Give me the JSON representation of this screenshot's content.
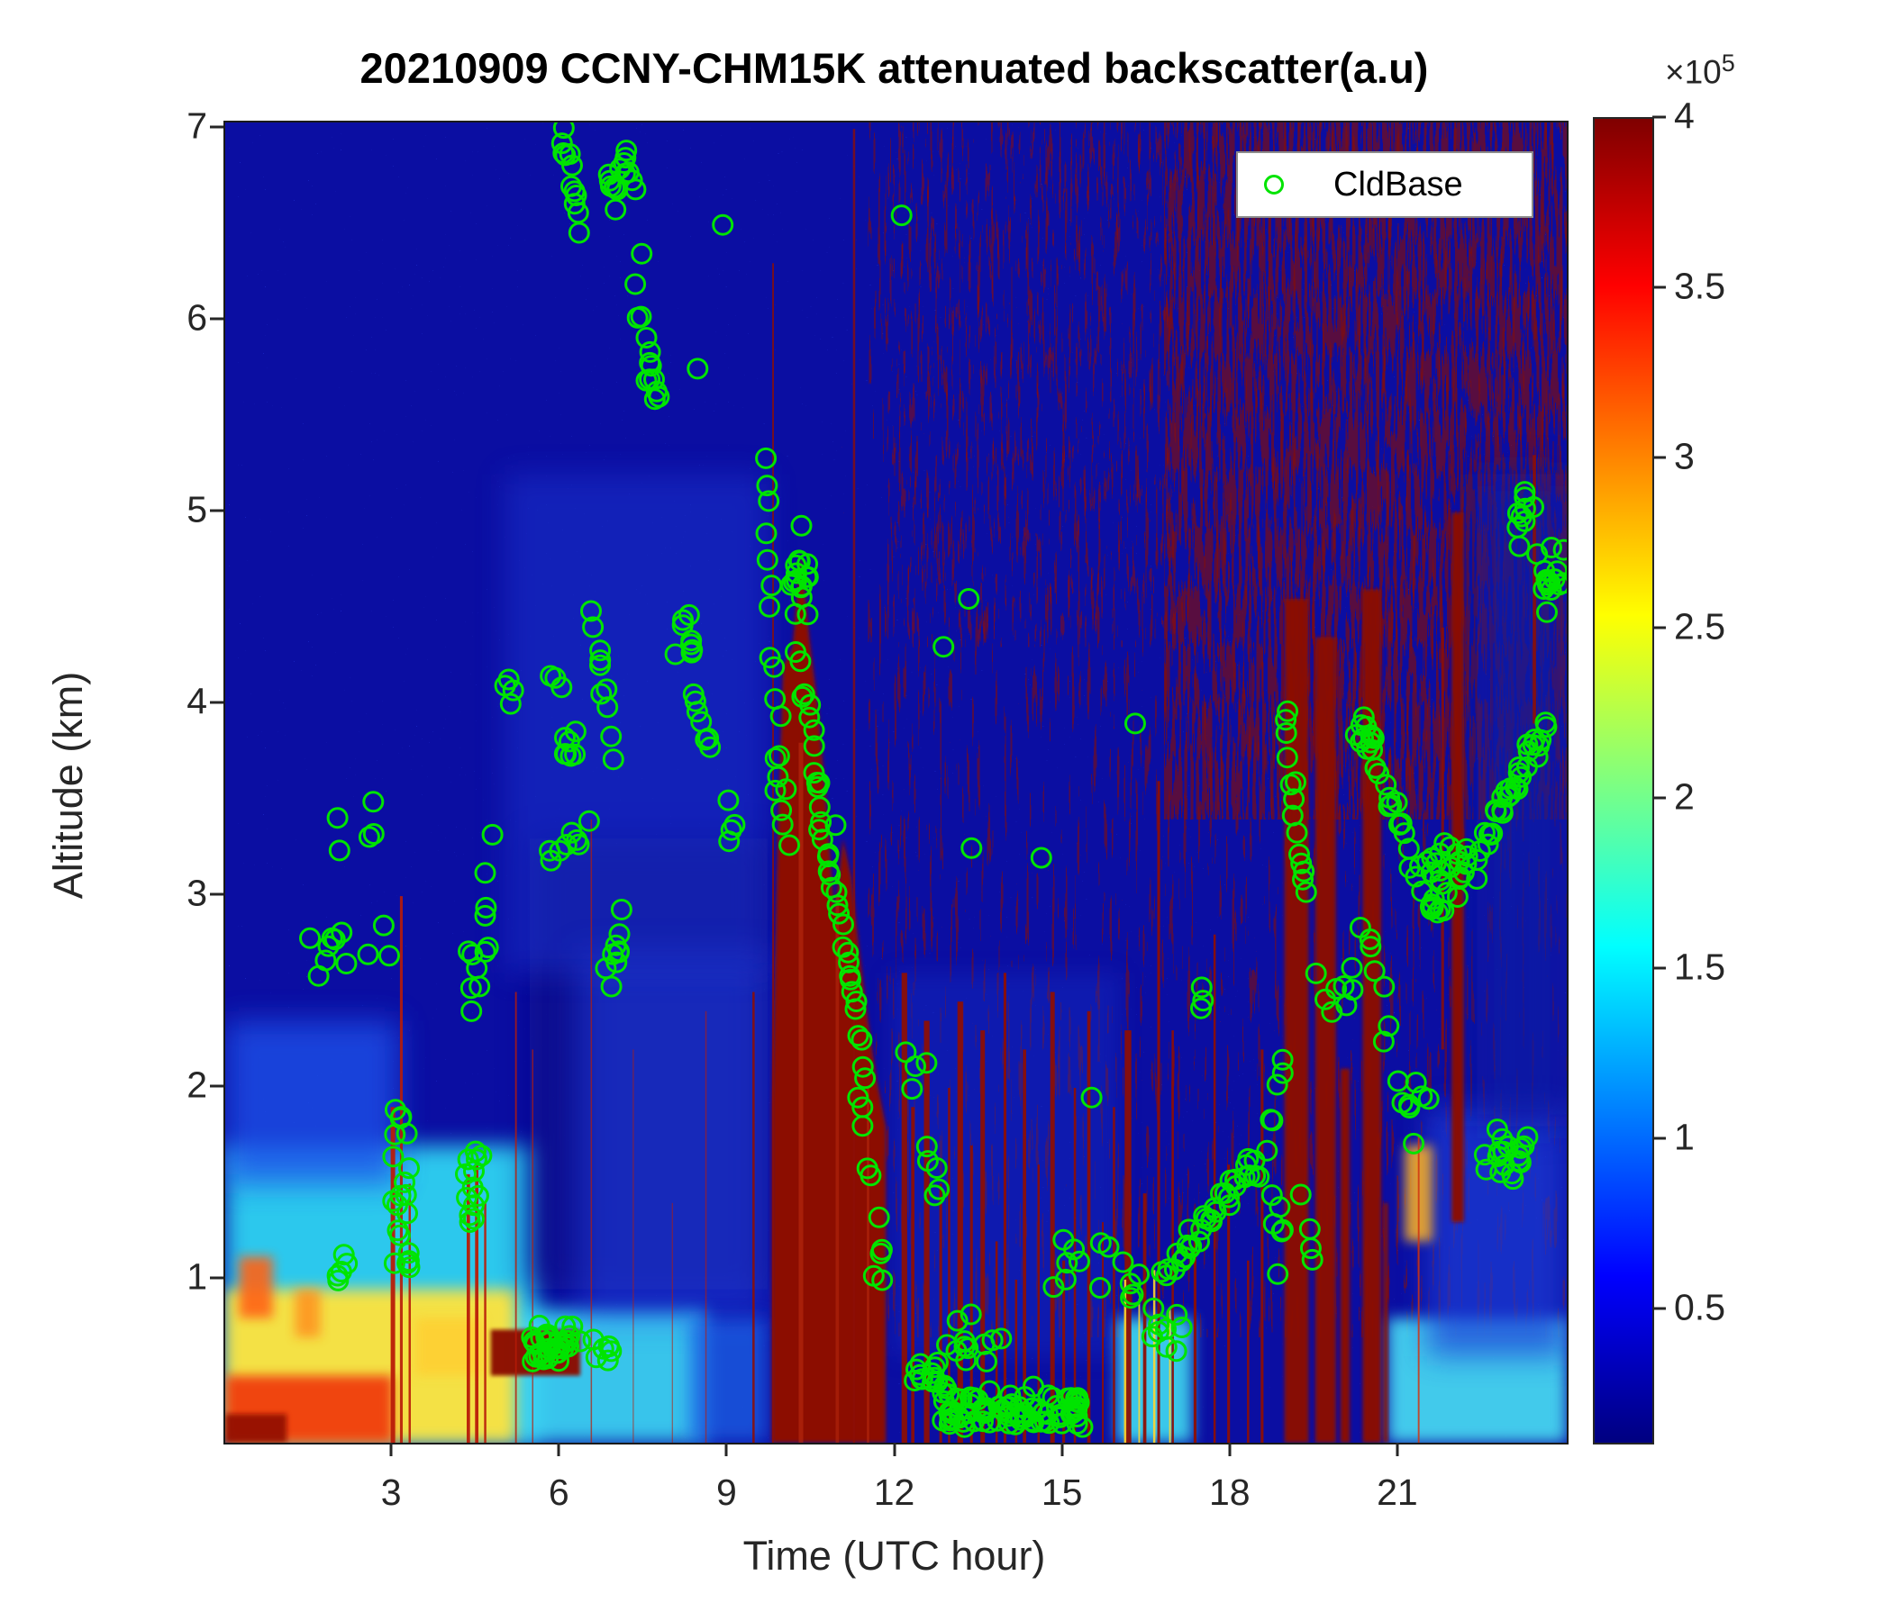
{
  "chart_data": {
    "type": "heatmap",
    "title": "20210909 CCNY-CHM15K attenuated backscatter(a.u)",
    "xlabel": "Time (UTC hour)",
    "ylabel": "Altitude (km)",
    "x_ticks": [
      3,
      6,
      9,
      12,
      15,
      18,
      21
    ],
    "y_ticks": [
      1,
      2,
      3,
      4,
      5,
      6,
      7
    ],
    "x_range": [
      0,
      24
    ],
    "y_range": [
      0.15,
      7.034
    ],
    "grid": false,
    "background_value_color": "#0b0ea2",
    "legend": {
      "label": "CldBase",
      "marker_color": "#00e400",
      "position": "top-right"
    },
    "colorbar": {
      "exp_base": "×10",
      "exp_sup": "5",
      "ticks": [
        4,
        3.5,
        3,
        2.5,
        2,
        1.5,
        1,
        0.5
      ],
      "vmax": 4,
      "vmin": 0.11,
      "colormap": "jet",
      "stops": [
        [
          0,
          "#7f0000"
        ],
        [
          0.126,
          "#ff0000"
        ],
        [
          0.375,
          "#ffff00"
        ],
        [
          0.625,
          "#00ffff"
        ],
        [
          0.874,
          "#0000ff"
        ],
        [
          1,
          "#000080"
        ]
      ]
    },
    "noise_layers_pre": [
      {
        "bf": "0.5 0.5",
        "oct": 1,
        "seed": 11,
        "table": "0 0 0 0 0 0 0 1",
        "color": "#17e7ff",
        "op": 0.6,
        "region": [
          0,
          24,
          0.15,
          7.034
        ]
      },
      {
        "bf": "0.55 0.5",
        "oct": 1,
        "seed": 23,
        "table": "0 0 0 0 0 0 0 0 1",
        "color": "#ffc83c",
        "op": 0.5,
        "region": [
          0,
          24,
          0.15,
          7.034
        ]
      },
      {
        "bf": "0.5 0.45",
        "oct": 1,
        "seed": 31,
        "table": "0 0 0 0 0 0 0 0 1",
        "color": "#d62b10",
        "op": 0.25,
        "region": [
          0,
          11.6,
          0.15,
          7.034
        ]
      },
      {
        "bf": "0.5 0.5",
        "oct": 1,
        "seed": 51,
        "table": "0 0 0 0 1",
        "color": "#3050ff",
        "op": 0.3,
        "region": [
          0,
          24,
          0.15,
          7.034
        ]
      }
    ],
    "fields_a": [
      [
        0,
        5.6,
        0.15,
        1.7,
        "#2fd2f2",
        0.95,
        12
      ],
      [
        5.2,
        8.6,
        0.15,
        0.85,
        "#3cd8f4",
        0.9,
        10
      ],
      [
        0,
        3.1,
        1.5,
        2.35,
        "#1e50e8",
        0.8,
        16
      ],
      [
        0,
        5.2,
        0.15,
        0.95,
        "#ffe33c",
        0.95,
        8
      ],
      [
        0,
        3.0,
        0.15,
        0.5,
        "#f03c0a",
        0.95,
        6
      ],
      [
        0,
        1.1,
        0.15,
        0.3,
        "#900d04",
        0.9,
        3
      ],
      [
        0.25,
        0.85,
        0.8,
        1.12,
        "#ff6414",
        0.9,
        6
      ],
      [
        1.25,
        1.7,
        0.7,
        0.95,
        "#ff8c1e",
        0.8,
        6
      ],
      [
        3.4,
        4.6,
        0.5,
        0.8,
        "#ffcf30",
        0.85,
        6
      ],
      [
        5.45,
        9.7,
        0.95,
        3.3,
        "#0a0f8c",
        0.9,
        18
      ],
      [
        6.3,
        9.7,
        0.8,
        2.7,
        "#2244e6",
        0.5,
        18
      ],
      [
        5.0,
        9.7,
        2.6,
        5.2,
        "#1b38d4",
        0.45,
        16
      ],
      [
        8.3,
        9.7,
        0.15,
        0.8,
        "#1e64e8",
        0.75,
        10
      ]
    ],
    "noise_layers_mid": [
      {
        "bf": "0.45 0.4",
        "oct": 1,
        "seed": 41,
        "table": "0 0 0 0 0 1",
        "color": "#c41e08",
        "op": 0.45,
        "region": [
          11.0,
          22.5,
          0.6,
          7.034
        ]
      },
      {
        "bf": "0.28 0.012",
        "oct": 2,
        "seed": 5,
        "table": "0 0 1",
        "color": "#8c0b06",
        "op": 0.55,
        "region": [
          11.5,
          24,
          0.7,
          7.034
        ]
      },
      {
        "bf": "0.3 0.015",
        "oct": 2,
        "seed": 8,
        "table": "0 1",
        "color": "#8c0b06",
        "op": 0.6,
        "region": [
          16.8,
          24,
          3.4,
          7.034
        ]
      },
      {
        "bf": "0.32 0.02",
        "oct": 2,
        "seed": 13,
        "table": "0 0 1",
        "color": "#991106",
        "op": 0.5,
        "region": [
          11.8,
          17.0,
          4.3,
          7.034
        ]
      },
      {
        "bf": "0.5 0.008",
        "oct": 1,
        "seed": 61,
        "table": "0 0 0 0 0 1",
        "color": "#d41f08",
        "op": 0.4,
        "region": [
          13,
          24,
          0.7,
          7.034
        ]
      },
      {
        "bf": "0.5 0.45",
        "oct": 1,
        "seed": 71,
        "table": "0 0 0 0 0 0 1",
        "color": "#e8e13c",
        "op": 0.3,
        "region": [
          12,
          24,
          0.7,
          7.034
        ]
      }
    ],
    "fields_b": [
      [
        11.9,
        16.0,
        0.6,
        2.6,
        "#1430c8",
        0.35,
        12
      ],
      [
        15.95,
        17.3,
        0.15,
        0.8,
        "#40dcf2",
        0.9,
        8
      ],
      [
        20.8,
        24,
        0.15,
        0.8,
        "#48dff4",
        0.9,
        8
      ],
      [
        21.5,
        24,
        0.6,
        1.9,
        "#1a3cd8",
        0.7,
        16
      ],
      [
        22.4,
        24,
        1.8,
        5.2,
        "#0c1ba6",
        0.7,
        20
      ],
      [
        21.1,
        21.6,
        1.2,
        1.7,
        "#ffb422",
        0.85,
        6
      ]
    ],
    "main_column": {
      "color": "#8c0f06",
      "bottom": 0.15,
      "blur": 2,
      "profile": [
        [
          9.78,
          1.9
        ],
        [
          9.88,
          3.3
        ],
        [
          9.98,
          4.2
        ],
        [
          10.15,
          4.3
        ],
        [
          10.3,
          4.8
        ],
        [
          10.45,
          4.35
        ],
        [
          10.6,
          4.0
        ],
        [
          10.75,
          3.5
        ],
        [
          10.9,
          2.9
        ],
        [
          11.05,
          3.3
        ],
        [
          11.2,
          3.1
        ],
        [
          11.35,
          2.7
        ],
        [
          11.5,
          2.35
        ],
        [
          11.65,
          2.05
        ],
        [
          11.82,
          1.8
        ]
      ]
    },
    "wide_columns": [
      [
        4.75,
        6.35,
        0.5,
        0.74
      ],
      [
        18.95,
        19.38,
        0.15,
        4.55
      ],
      [
        19.5,
        19.87,
        0.15,
        4.35
      ],
      [
        19.95,
        20.12,
        0.15,
        2.1
      ],
      [
        20.35,
        20.68,
        0.15,
        4.6
      ],
      [
        20.72,
        20.8,
        0.15,
        1.4
      ],
      [
        21.94,
        22.16,
        1.3,
        5.0
      ]
    ],
    "thin_columns": [
      [
        3.0,
        0.04,
        1.9,
        "#b81c08",
        0.95
      ],
      [
        3.15,
        0.025,
        3.0,
        "#b81c08",
        0.9
      ],
      [
        3.3,
        0.02,
        1.5,
        "#b81c08",
        0.9
      ],
      [
        4.35,
        0.03,
        1.55,
        "#b81c08",
        0.95
      ],
      [
        4.5,
        0.03,
        1.6,
        "#b81c08",
        0.95
      ],
      [
        4.65,
        0.02,
        1.4,
        "#b81c08",
        0.9
      ],
      [
        5.2,
        0.015,
        2.5,
        "#b81c08",
        0.8
      ],
      [
        5.5,
        0.012,
        2.2,
        "#b81c08",
        0.7
      ],
      [
        6.55,
        0.012,
        3.4,
        "#b81c08",
        0.7
      ],
      [
        7.3,
        0.01,
        2.2,
        "#b81c08",
        0.6
      ],
      [
        8.0,
        0.01,
        1.4,
        "#b81c08",
        0.6
      ],
      [
        8.6,
        0.012,
        2.4,
        "#b81c08",
        0.6
      ],
      [
        9.45,
        0.02,
        2.5,
        "#8c0f06",
        0.9
      ],
      [
        9.8,
        0.015,
        6.3,
        "#8c0f06",
        0.85
      ],
      [
        11.25,
        0.02,
        7.0,
        "#8c0f06",
        0.8
      ],
      [
        12.15,
        0.05,
        2.6
      ],
      [
        12.3,
        0.03,
        1.9
      ],
      [
        12.55,
        0.05,
        2.35
      ],
      [
        12.8,
        0.025,
        1.5
      ],
      [
        12.95,
        0.02,
        2.0
      ],
      [
        13.15,
        0.05,
        2.45
      ],
      [
        13.35,
        0.025,
        1.7
      ],
      [
        13.55,
        0.04,
        2.3
      ],
      [
        13.8,
        0.02,
        1.2
      ],
      [
        13.95,
        0.025,
        2.6
      ],
      [
        14.15,
        0.02,
        1.0
      ],
      [
        14.3,
        0.03,
        2.2
      ],
      [
        14.55,
        0.02,
        1.6
      ],
      [
        14.8,
        0.04,
        2.5
      ],
      [
        15.0,
        0.025,
        1.1
      ],
      [
        15.2,
        0.02,
        2.0
      ],
      [
        15.45,
        0.03,
        2.4
      ],
      [
        15.7,
        0.015,
        1.3
      ],
      [
        15.9,
        0.02,
        1.9
      ],
      [
        16.15,
        0.06,
        2.3
      ],
      [
        16.45,
        0.03,
        1.45
      ],
      [
        16.7,
        0.025,
        3.6
      ],
      [
        16.95,
        0.02,
        2.3
      ],
      [
        17.35,
        0.025,
        1.2
      ],
      [
        17.7,
        0.02,
        2.8
      ],
      [
        17.95,
        0.025,
        1.6
      ],
      [
        18.3,
        0.02,
        1.1
      ],
      [
        18.55,
        0.025,
        2.2
      ],
      [
        10.3,
        0.04,
        3.8,
        "#c03010",
        0.55
      ],
      [
        10.95,
        0.03,
        3.0,
        "#b82a0c",
        0.55
      ],
      [
        11.5,
        0.02,
        2.0,
        "#c03010",
        0.55
      ],
      [
        16.1,
        0.02,
        1.0,
        "#ffd62e",
        0.9
      ],
      [
        16.35,
        0.015,
        0.9,
        "#ffd62e",
        0.85
      ],
      [
        16.62,
        0.02,
        1.05,
        "#ffd62e",
        0.9
      ],
      [
        16.9,
        0.015,
        0.85,
        "#ffd62e",
        0.85
      ],
      [
        21.35,
        0.015,
        1.75,
        "#d03410",
        0.85
      ],
      [
        21.78,
        0.025,
        4.4,
        "#8c0f06",
        0.85,
        2.2
      ],
      [
        23.42,
        0.03,
        5.3,
        "#8c0f06",
        0.9,
        3.9
      ]
    ],
    "cldbase_clusters": [
      [
        6.05,
        6.35,
        6.5,
        7.02,
        12,
        1
      ],
      [
        6.85,
        7.35,
        6.55,
        6.95,
        15,
        0
      ],
      [
        7.35,
        7.7,
        5.55,
        6.15,
        8,
        1
      ],
      [
        7.5,
        7.72,
        5.58,
        5.8,
        5,
        0
      ],
      [
        5.0,
        5.2,
        3.95,
        4.25,
        4,
        0
      ],
      [
        6.0,
        6.3,
        3.6,
        3.9,
        7,
        0
      ],
      [
        6.6,
        6.9,
        3.78,
        4.5,
        10,
        1
      ],
      [
        6.8,
        7.1,
        2.45,
        3.0,
        9,
        0
      ],
      [
        4.6,
        4.9,
        2.55,
        3.45,
        6,
        0
      ],
      [
        3.0,
        3.3,
        0.9,
        2.15,
        20,
        0
      ],
      [
        1.4,
        2.95,
        2.5,
        2.95,
        11,
        0
      ],
      [
        1.95,
        2.2,
        0.95,
        1.15,
        5,
        0
      ],
      [
        4.3,
        4.65,
        1.2,
        1.8,
        13,
        0
      ],
      [
        4.35,
        4.6,
        2.35,
        2.75,
        6,
        0
      ],
      [
        5.45,
        6.4,
        0.5,
        0.78,
        34,
        0
      ],
      [
        6.5,
        6.95,
        0.52,
        0.75,
        7,
        0
      ],
      [
        2.0,
        2.9,
        3.2,
        3.6,
        5,
        0
      ],
      [
        5.8,
        6.1,
        4.05,
        4.2,
        3,
        0
      ],
      [
        5.75,
        6.55,
        3.05,
        3.4,
        8,
        0
      ],
      [
        8.05,
        8.45,
        4.2,
        4.5,
        8,
        0
      ],
      [
        8.35,
        8.7,
        3.75,
        4.05,
        7,
        1
      ],
      [
        8.95,
        9.15,
        3.25,
        3.4,
        3,
        0
      ],
      [
        9.62,
        9.78,
        4.65,
        5.3,
        6,
        1
      ],
      [
        9.75,
        9.98,
        3.55,
        4.45,
        7,
        1
      ],
      [
        9.8,
        10.05,
        3.25,
        3.7,
        6,
        1
      ],
      [
        10.1,
        10.45,
        4.35,
        5.1,
        16,
        0
      ],
      [
        10.25,
        10.65,
        3.55,
        4.25,
        11,
        1
      ],
      [
        10.55,
        10.9,
        3.05,
        3.55,
        9,
        1
      ],
      [
        10.85,
        11.2,
        2.55,
        3.1,
        9,
        1
      ],
      [
        11.15,
        11.5,
        2.05,
        2.6,
        8,
        1
      ],
      [
        11.3,
        11.65,
        1.35,
        2.0,
        6,
        1
      ],
      [
        11.6,
        11.82,
        0.85,
        1.2,
        4,
        0
      ],
      [
        12.3,
        12.8,
        0.42,
        0.62,
        12,
        0
      ],
      [
        12.8,
        15.35,
        0.17,
        0.48,
        85,
        0
      ],
      [
        12.9,
        14.2,
        0.5,
        0.85,
        12,
        0
      ],
      [
        14.75,
        16.35,
        0.8,
        1.25,
        14,
        0
      ],
      [
        16.35,
        17.2,
        0.55,
        1.05,
        10,
        0
      ],
      [
        16.85,
        18.4,
        1.05,
        1.62,
        30,
        2
      ],
      [
        18.45,
        18.95,
        1.5,
        2.15,
        8,
        2
      ],
      [
        18.5,
        19.6,
        0.95,
        1.6,
        10,
        0
      ],
      [
        19.3,
        20.3,
        2.2,
        2.9,
        8,
        0
      ],
      [
        18.95,
        19.35,
        3.0,
        3.95,
        14,
        1
      ],
      [
        20.2,
        20.68,
        3.7,
        3.95,
        10,
        0
      ],
      [
        20.5,
        21.2,
        3.2,
        3.8,
        16,
        1
      ],
      [
        20.35,
        21.3,
        1.7,
        2.9,
        12,
        1
      ],
      [
        21.25,
        22.42,
        2.85,
        3.35,
        34,
        0
      ],
      [
        22.5,
        23.62,
        3.25,
        3.9,
        30,
        2
      ],
      [
        23.1,
        23.55,
        4.75,
        5.15,
        10,
        0
      ],
      [
        23.55,
        23.95,
        4.45,
        4.85,
        14,
        0
      ],
      [
        22.3,
        23.35,
        1.45,
        1.88,
        18,
        0
      ],
      [
        21.3,
        21.55,
        1.85,
        2.1,
        3,
        0
      ],
      [
        12.15,
        12.55,
        1.95,
        2.35,
        4,
        0
      ],
      [
        12.5,
        12.9,
        1.4,
        1.8,
        5,
        0
      ],
      [
        17.3,
        17.6,
        2.35,
        2.6,
        3,
        0
      ]
    ],
    "cldbase_singles": [
      [
        7.45,
        6.35
      ],
      [
        8.45,
        5.75
      ],
      [
        8.9,
        6.5
      ],
      [
        12.1,
        6.55
      ],
      [
        13.3,
        4.55
      ],
      [
        12.85,
        4.3
      ],
      [
        13.35,
        3.25
      ],
      [
        14.6,
        3.2
      ],
      [
        16.28,
        3.9
      ],
      [
        9.0,
        3.5
      ],
      [
        10.92,
        3.37
      ],
      [
        15.5,
        1.95
      ]
    ]
  }
}
